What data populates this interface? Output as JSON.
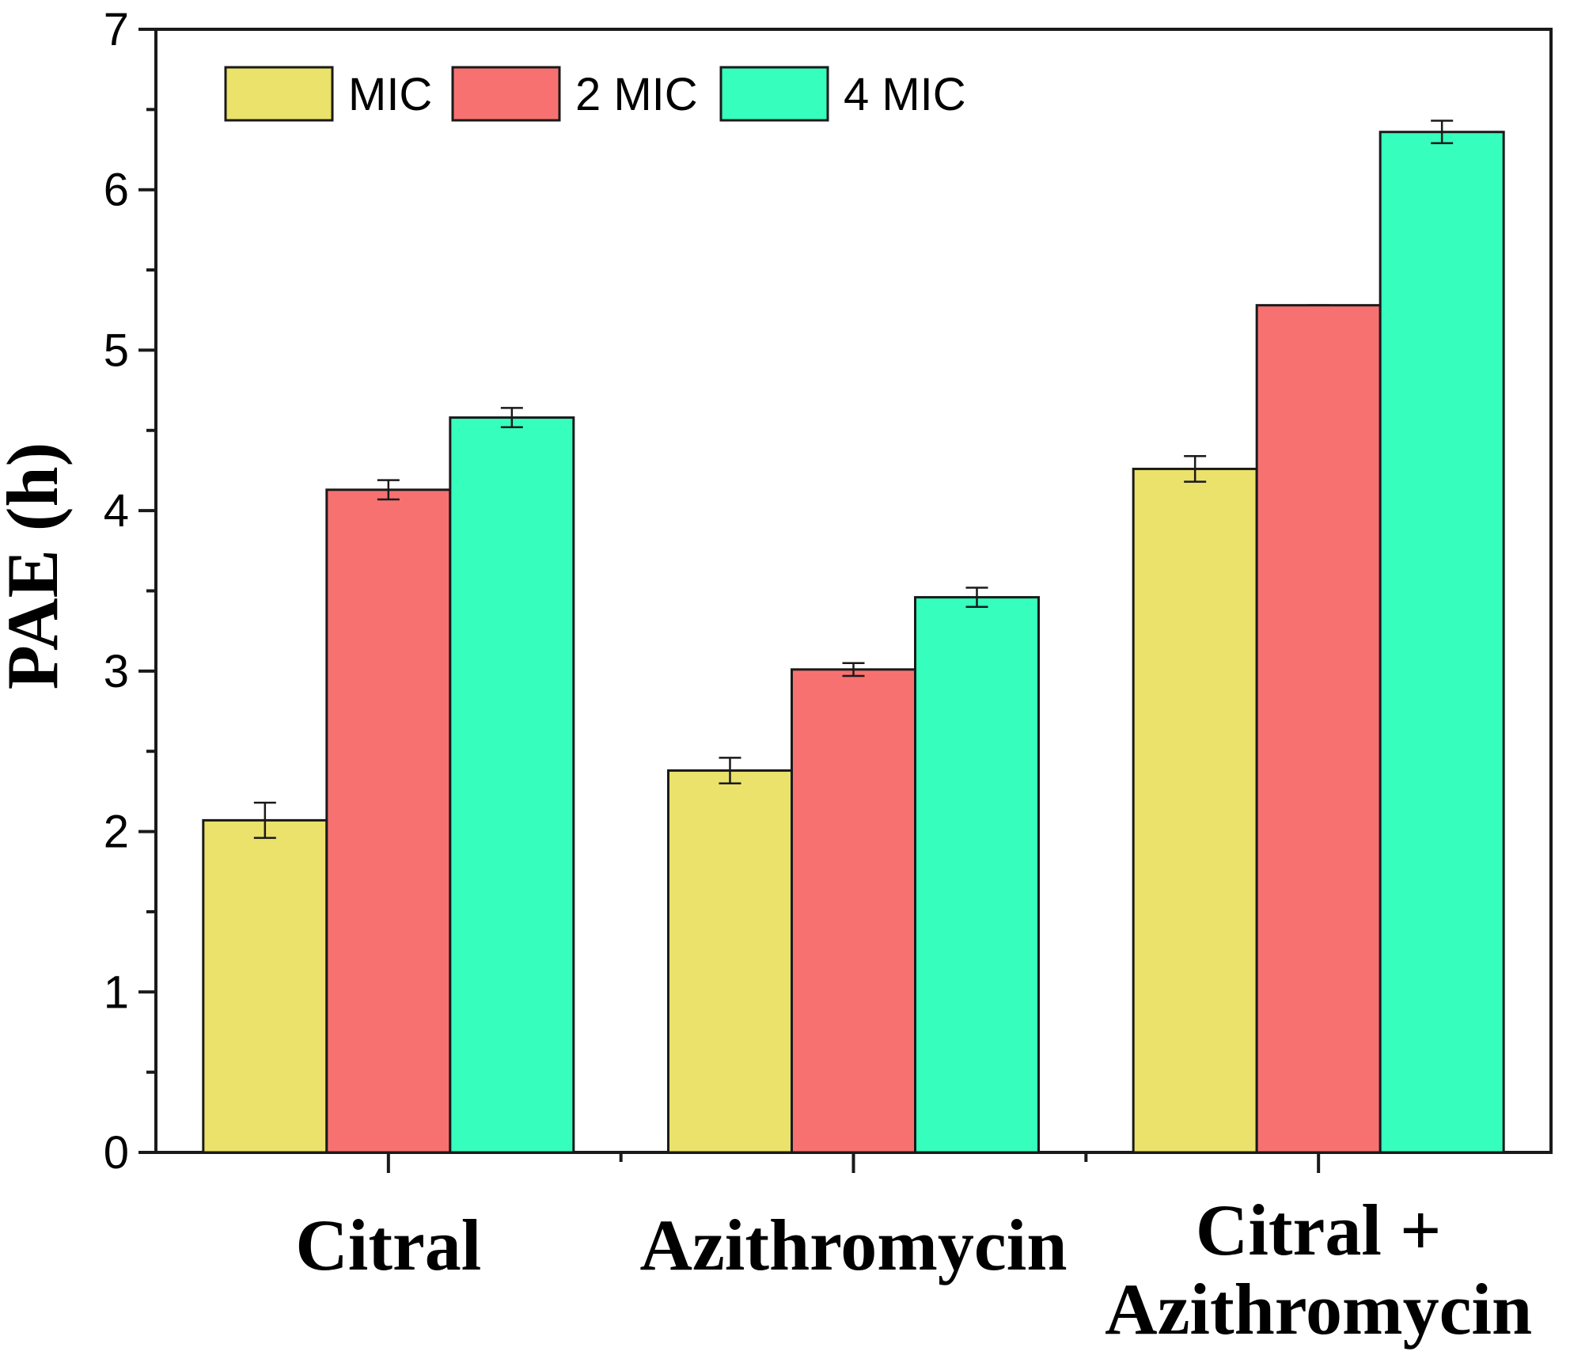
{
  "chart_data": {
    "type": "bar",
    "title": "",
    "xlabel": "",
    "ylabel": "PAE (h)",
    "ylim": [
      0,
      7
    ],
    "yticks": [
      0,
      1,
      2,
      3,
      4,
      5,
      6,
      7
    ],
    "grid": false,
    "legend_position": "top-left",
    "categories": [
      [
        "Citral"
      ],
      [
        "Azithromycin"
      ],
      [
        "Citral +",
        "Azithromycin"
      ]
    ],
    "series": [
      {
        "name": "MIC",
        "color": "#EAE26A",
        "values": [
          2.07,
          2.38,
          4.26
        ],
        "errors": [
          0.11,
          0.08,
          0.08
        ]
      },
      {
        "name": "2 MIC",
        "color": "#F87171",
        "values": [
          4.13,
          3.01,
          5.28
        ],
        "errors": [
          0.06,
          0.04,
          0.0
        ]
      },
      {
        "name": "4 MIC",
        "color": "#36FFBE",
        "values": [
          4.58,
          3.46,
          6.36
        ],
        "errors": [
          0.06,
          0.06,
          0.07
        ]
      }
    ]
  }
}
